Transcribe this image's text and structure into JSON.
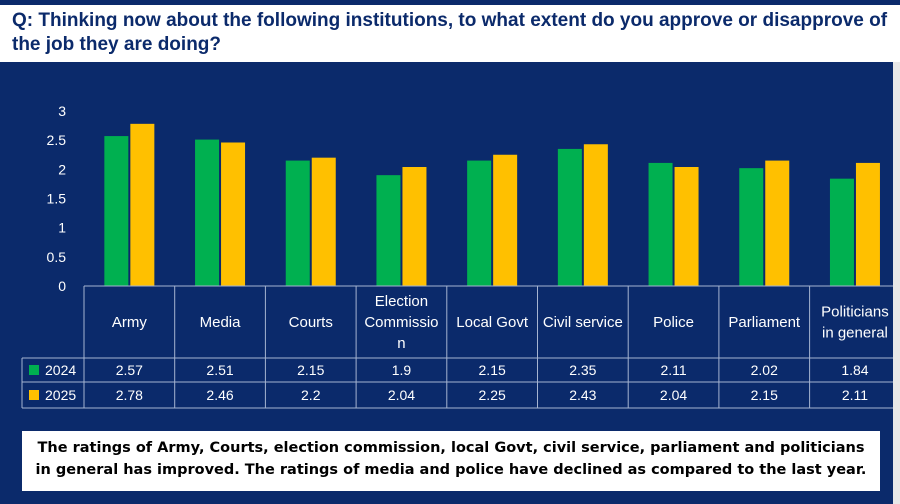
{
  "question": "Q: Thinking now about the following institutions, to what extent do you approve or disapprove of the job they are doing?",
  "colors": {
    "background": "#0b2a6b",
    "bar_2024": "#00b050",
    "bar_2025": "#ffc000",
    "text": "#ffffff"
  },
  "chart_data": {
    "type": "bar",
    "categories": [
      "Army",
      "Media",
      "Courts",
      "Election Commission",
      "Local Govt",
      "Civil service",
      "Police",
      "Parliament",
      "Politicians in general"
    ],
    "category_lines": [
      [
        "Army"
      ],
      [
        "Media"
      ],
      [
        "Courts"
      ],
      [
        "Election",
        "Commissio",
        "n"
      ],
      [
        "Local Govt"
      ],
      [
        "Civil service"
      ],
      [
        "Police"
      ],
      [
        "Parliament"
      ],
      [
        "Politicians",
        "in general"
      ]
    ],
    "series": [
      {
        "name": "2024",
        "color": "#00b050",
        "values": [
          2.57,
          2.51,
          2.15,
          1.9,
          2.15,
          2.35,
          2.11,
          2.02,
          1.84
        ]
      },
      {
        "name": "2025",
        "color": "#ffc000",
        "values": [
          2.78,
          2.46,
          2.2,
          2.04,
          2.25,
          2.43,
          2.04,
          2.15,
          2.11
        ]
      }
    ],
    "ylim": [
      0,
      3
    ],
    "yticks": [
      "0",
      "0.5",
      "1",
      "1.5",
      "2",
      "2.5",
      "3"
    ],
    "grid": false,
    "legend": "data-table"
  },
  "summary": "The ratings of Army, Courts, election commission, local Govt, civil service, parliament and politicians in general has improved. The ratings of media and police have declined as compared to the last year."
}
